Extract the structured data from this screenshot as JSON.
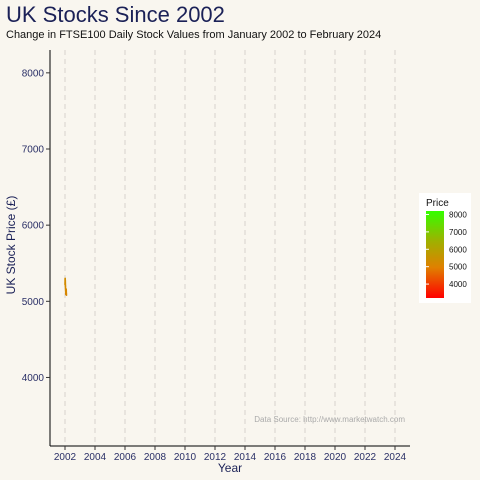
{
  "chart_data": {
    "type": "line",
    "title": "UK Stocks Since 2002",
    "subtitle": "Change in FTSE100 Daily Stock Values from January 2002 to February 2024",
    "xlabel": "Year",
    "ylabel": "UK Stock Price (£)",
    "xlim": [
      2001,
      2025
    ],
    "ylim": [
      3100,
      8300
    ],
    "x_ticks": [
      2002,
      2004,
      2006,
      2008,
      2010,
      2012,
      2014,
      2016,
      2018,
      2020,
      2022,
      2024
    ],
    "y_ticks": [
      4000,
      5000,
      6000,
      7000,
      8000
    ],
    "grid": "vertical dashed",
    "series": [
      {
        "x": [
          2002.0,
          2002.01,
          2002.02,
          2002.03,
          2002.04,
          2002.05,
          2002.06,
          2002.07,
          2002.08,
          2002.09,
          2002.1
        ],
        "y": [
          5220,
          5300,
          5270,
          5200,
          5150,
          5110,
          5090,
          5120,
          5160,
          5100,
          5080
        ]
      }
    ],
    "annotation": "Data Source: http://www.marketwatch.com",
    "legend": {
      "title": "Price",
      "placement": "right",
      "ticks": [
        4000,
        5000,
        6000,
        7000,
        8000
      ],
      "range": [
        3200,
        8200
      ],
      "colors": [
        "#ff0000",
        "#e08000",
        "#a0b000",
        "#33ff00"
      ]
    }
  }
}
